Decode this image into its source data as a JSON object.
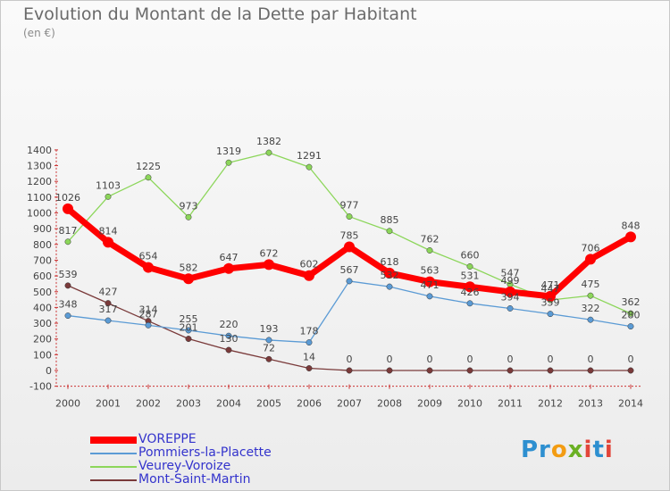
{
  "title": "Evolution du Montant de la Dette par Habitant",
  "subtitle": "(en €)",
  "logo": {
    "p1": "Pr",
    "p2": "o",
    "p3": "x",
    "p4": "i",
    "p5": "t",
    "p6": "i"
  },
  "chart_data": {
    "type": "line",
    "categories": [
      "2000",
      "2001",
      "2002",
      "2003",
      "2004",
      "2005",
      "2006",
      "2007",
      "2008",
      "2009",
      "2010",
      "2011",
      "2012",
      "2013",
      "2014"
    ],
    "ylim": [
      -100,
      1400
    ],
    "yticks": [
      -100,
      0,
      100,
      200,
      300,
      400,
      500,
      600,
      700,
      800,
      900,
      1000,
      1100,
      1200,
      1300,
      1400
    ],
    "grid": false,
    "legend_position": "bottom-left",
    "series": [
      {
        "name": "VOREPPE",
        "color": "#ff0000",
        "values": [
          1026,
          814,
          654,
          582,
          647,
          672,
          602,
          785,
          618,
          563,
          531,
          499,
          471,
          706,
          848
        ]
      },
      {
        "name": "Pommiers-la-Placette",
        "color": "#5b9bd5",
        "values": [
          348,
          317,
          287,
          255,
          220,
          193,
          178,
          567,
          532,
          471,
          426,
          394,
          359,
          322,
          280
        ]
      },
      {
        "name": "Veurey-Voroize",
        "color": "#8cd65a",
        "values": [
          817,
          1103,
          1225,
          973,
          1319,
          1382,
          1291,
          977,
          885,
          762,
          660,
          547,
          447,
          475,
          362
        ]
      },
      {
        "name": "Mont-Saint-Martin",
        "color": "#7a3a3a",
        "values": [
          539,
          427,
          314,
          201,
          130,
          72,
          14,
          0,
          0,
          0,
          0,
          0,
          0,
          0,
          0
        ]
      }
    ]
  }
}
